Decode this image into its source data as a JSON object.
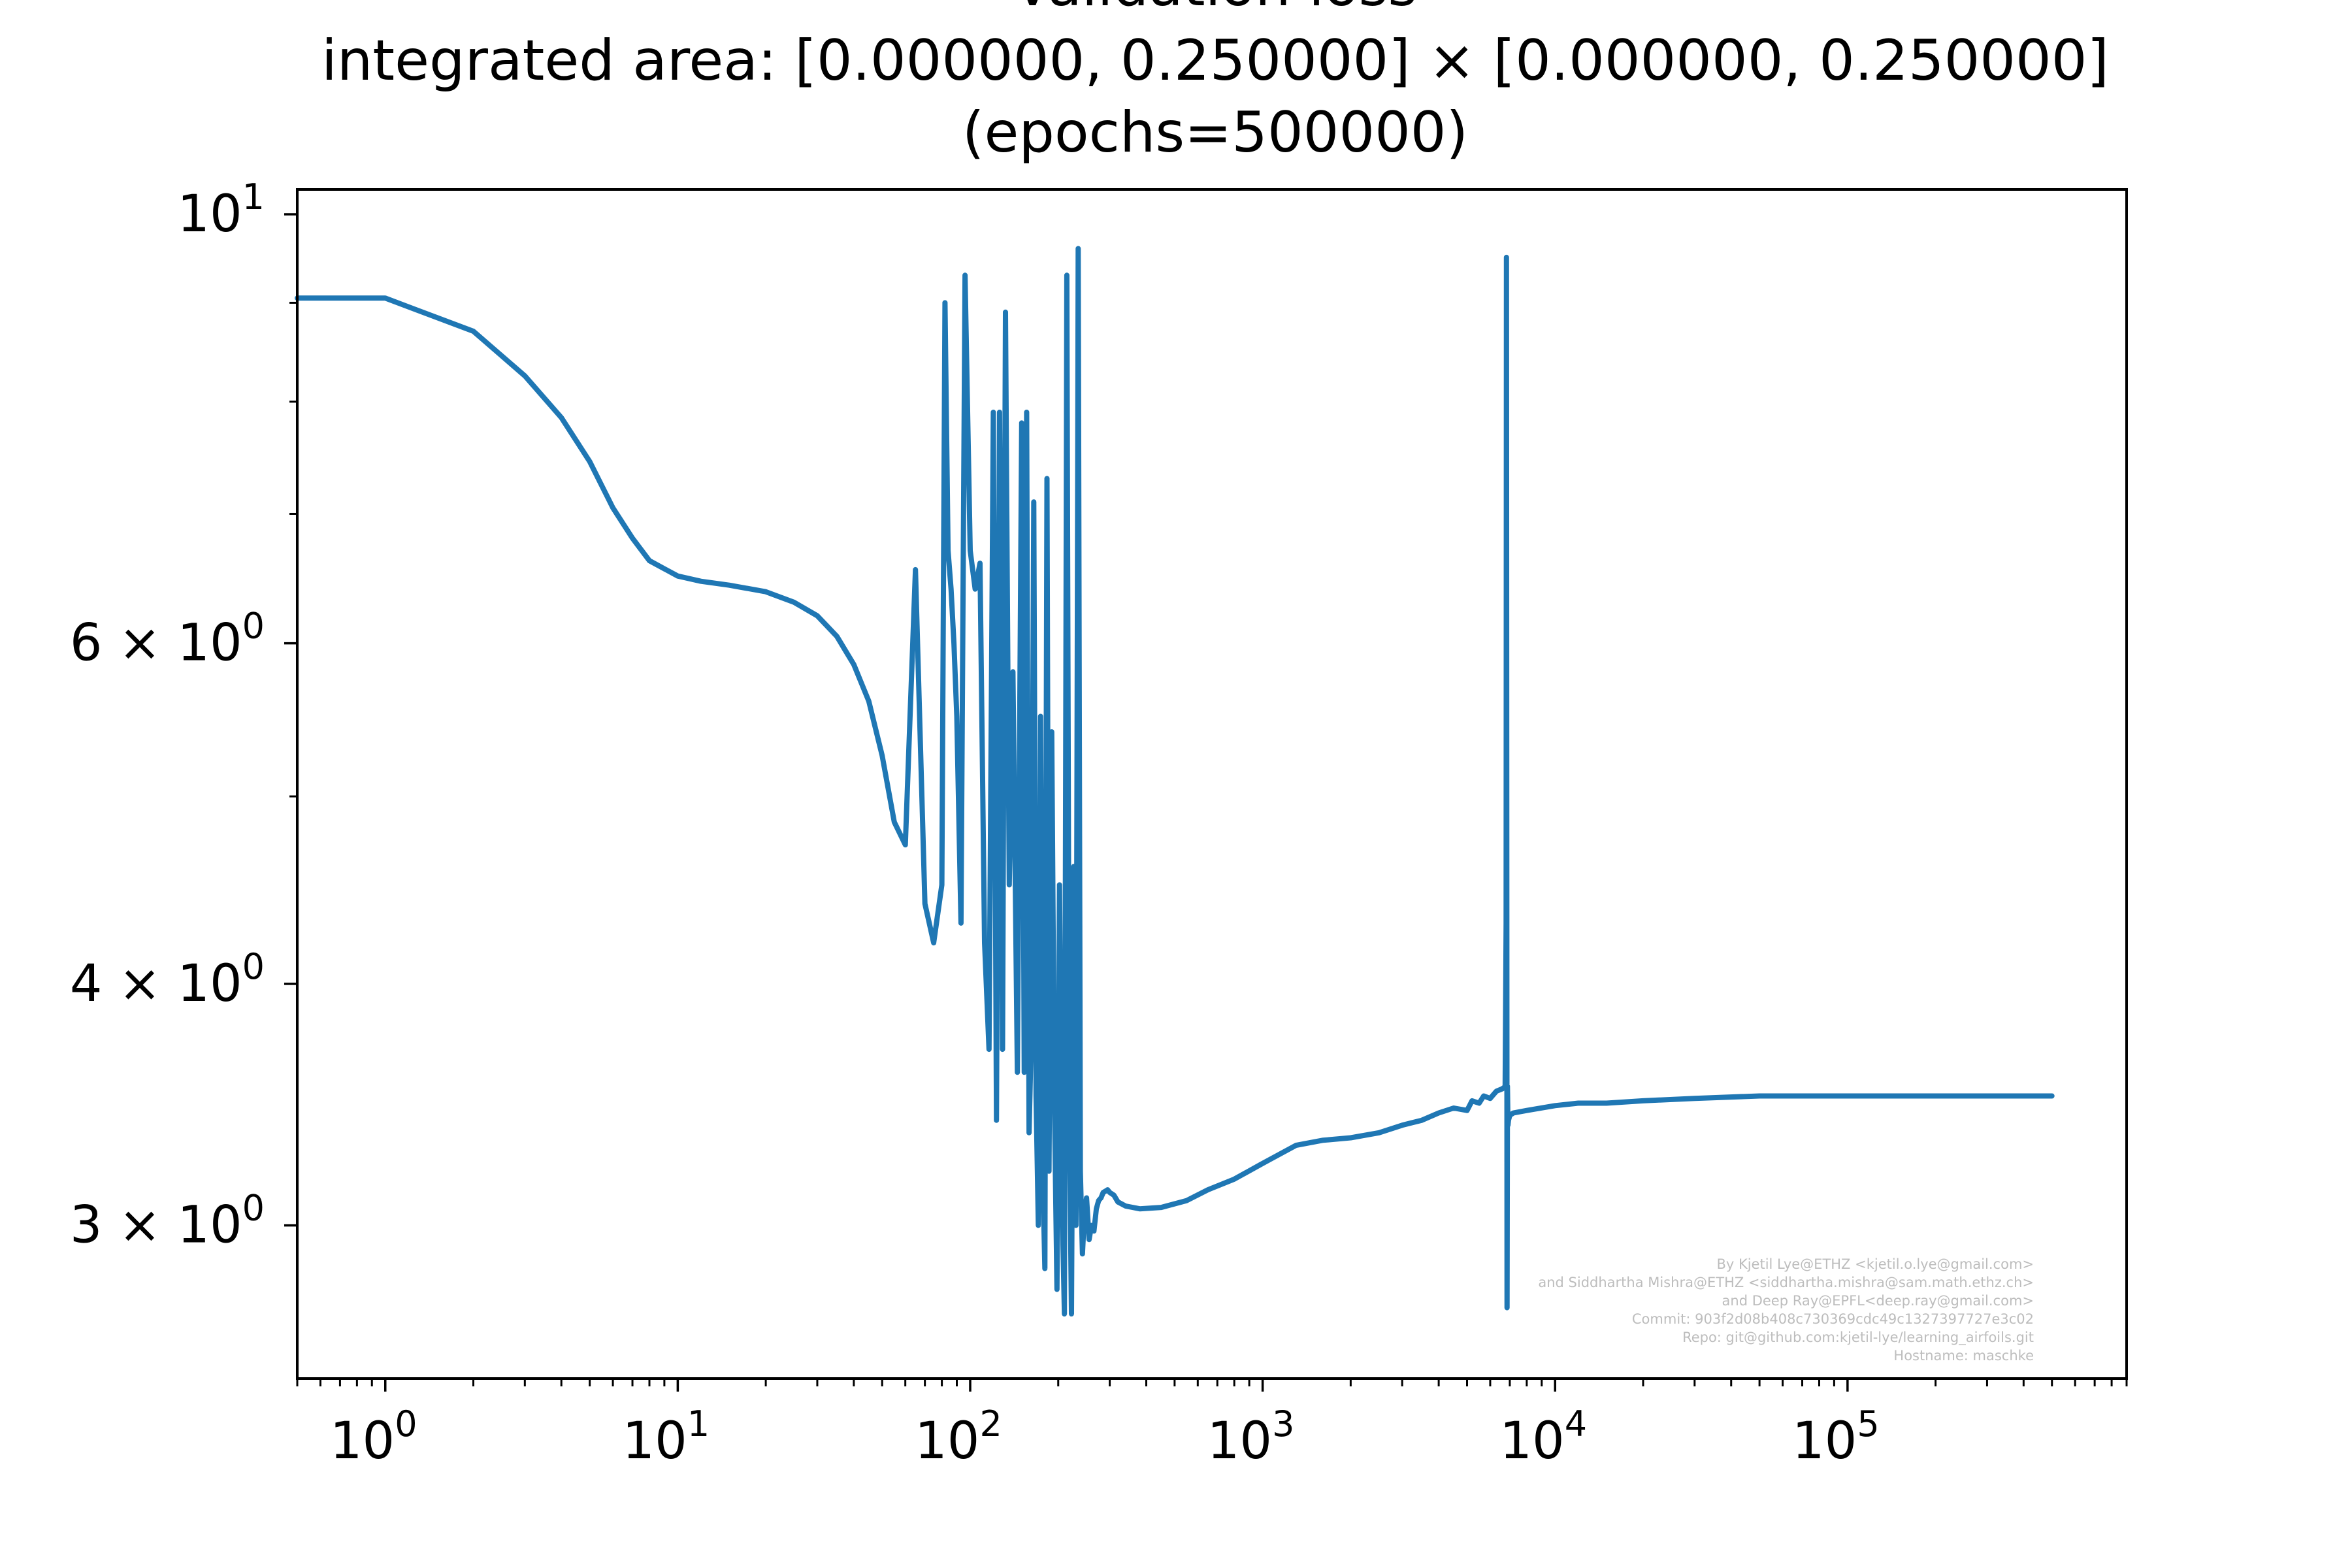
{
  "chart_data": {
    "type": "line",
    "title_lines": [
      "Validation loss",
      "integrated area: [0.000000, 0.250000] × [0.000000, 0.250000]",
      "(epochs=500000)"
    ],
    "xlabel": "",
    "ylabel": "",
    "xscale": "log",
    "yscale": "log",
    "xlim": [
      0.5,
      900000
    ],
    "ylim": [
      2.5,
      10.3
    ],
    "x_ticks": [
      {
        "value": 1,
        "base": "10",
        "exp": "0"
      },
      {
        "value": 10,
        "base": "10",
        "exp": "1"
      },
      {
        "value": 100,
        "base": "10",
        "exp": "2"
      },
      {
        "value": 1000,
        "base": "10",
        "exp": "3"
      },
      {
        "value": 10000,
        "base": "10",
        "exp": "4"
      },
      {
        "value": 100000,
        "base": "10",
        "exp": "5"
      }
    ],
    "y_ticks": [
      {
        "value": 3,
        "mant": "3 × 10",
        "exp": "0"
      },
      {
        "value": 4,
        "mant": "4 × 10",
        "exp": "0"
      },
      {
        "value": 6,
        "mant": "6 × 10",
        "exp": "0"
      },
      {
        "value": 10,
        "mant": "10",
        "exp": "1"
      }
    ],
    "y_minor_ticks": [
      5,
      7,
      8,
      9
    ],
    "line_color": "#1f77b4",
    "grid": false,
    "series": [
      {
        "x": [
          0.5,
          1,
          2,
          3,
          4,
          5,
          6,
          7,
          8,
          10,
          12,
          15,
          20,
          25,
          30,
          35,
          40,
          45,
          50,
          55,
          60,
          65,
          70,
          75,
          80,
          82,
          84,
          86,
          88,
          90,
          93,
          96,
          100,
          104,
          108,
          112,
          116,
          120,
          123,
          126,
          129,
          132,
          136,
          140,
          145,
          150,
          153,
          156,
          159,
          162,
          165,
          168,
          171,
          174,
          177,
          180,
          183,
          186,
          190,
          194,
          198,
          202,
          206,
          210,
          214,
          218,
          222,
          226,
          230,
          234,
          238,
          242,
          246,
          250,
          255,
          260,
          265,
          270,
          275,
          280,
          285,
          290,
          295,
          300,
          305,
          310,
          320,
          340,
          380,
          450,
          550,
          650,
          800,
          1000,
          1300,
          1600,
          2000,
          2500,
          3000,
          3500,
          4000,
          4500,
          5000,
          5200,
          5500,
          5700,
          6000,
          6300,
          6600,
          6750,
          6800,
          6820,
          6850,
          6870,
          6900,
          6930,
          7000,
          7200,
          8000,
          10000,
          12000,
          15000,
          20000,
          30000,
          50000,
          100000,
          200000,
          500000
        ],
        "y": [
          9.05,
          9.05,
          8.7,
          8.25,
          7.85,
          7.45,
          7.05,
          6.8,
          6.62,
          6.5,
          6.46,
          6.43,
          6.38,
          6.3,
          6.2,
          6.05,
          5.85,
          5.6,
          5.25,
          4.85,
          4.72,
          6.55,
          4.4,
          4.2,
          4.5,
          9.0,
          6.7,
          6.4,
          6.0,
          5.5,
          4.3,
          9.3,
          6.7,
          6.4,
          6.6,
          4.2,
          3.7,
          7.9,
          3.4,
          7.9,
          3.7,
          8.9,
          4.5,
          5.8,
          3.6,
          7.8,
          3.6,
          7.9,
          3.35,
          3.8,
          7.1,
          3.5,
          3.0,
          5.5,
          3.2,
          2.85,
          7.3,
          3.2,
          5.4,
          3.5,
          2.78,
          4.5,
          3.1,
          2.7,
          9.3,
          3.5,
          2.7,
          4.6,
          3.0,
          9.6,
          3.2,
          2.9,
          3.05,
          3.1,
          2.95,
          3.0,
          2.98,
          3.06,
          3.09,
          3.1,
          3.12,
          3.125,
          3.13,
          3.12,
          3.115,
          3.11,
          3.085,
          3.07,
          3.06,
          3.065,
          3.09,
          3.13,
          3.17,
          3.23,
          3.3,
          3.32,
          3.33,
          3.35,
          3.38,
          3.4,
          3.43,
          3.45,
          3.44,
          3.48,
          3.47,
          3.5,
          3.49,
          3.52,
          3.53,
          3.54,
          4.3,
          9.5,
          2.72,
          3.54,
          3.38,
          3.4,
          3.42,
          3.43,
          3.44,
          3.46,
          3.47,
          3.47,
          3.48,
          3.49,
          3.5,
          3.5,
          3.5,
          3.5
        ]
      }
    ]
  },
  "credits": [
    "By Kjetil Lye@ETHZ <kjetil.o.lye@gmail.com>",
    "and Siddhartha Mishra@ETHZ <siddhartha.mishra@sam.math.ethz.ch>",
    "and Deep Ray@EPFL<deep.ray@gmail.com>",
    "Commit: 903f2d08b408c730369cdc49c1327397727e3c02",
    "Repo: git@github.com:kjetil-lye/learning_airfoils.git",
    "Hostname: maschke"
  ]
}
